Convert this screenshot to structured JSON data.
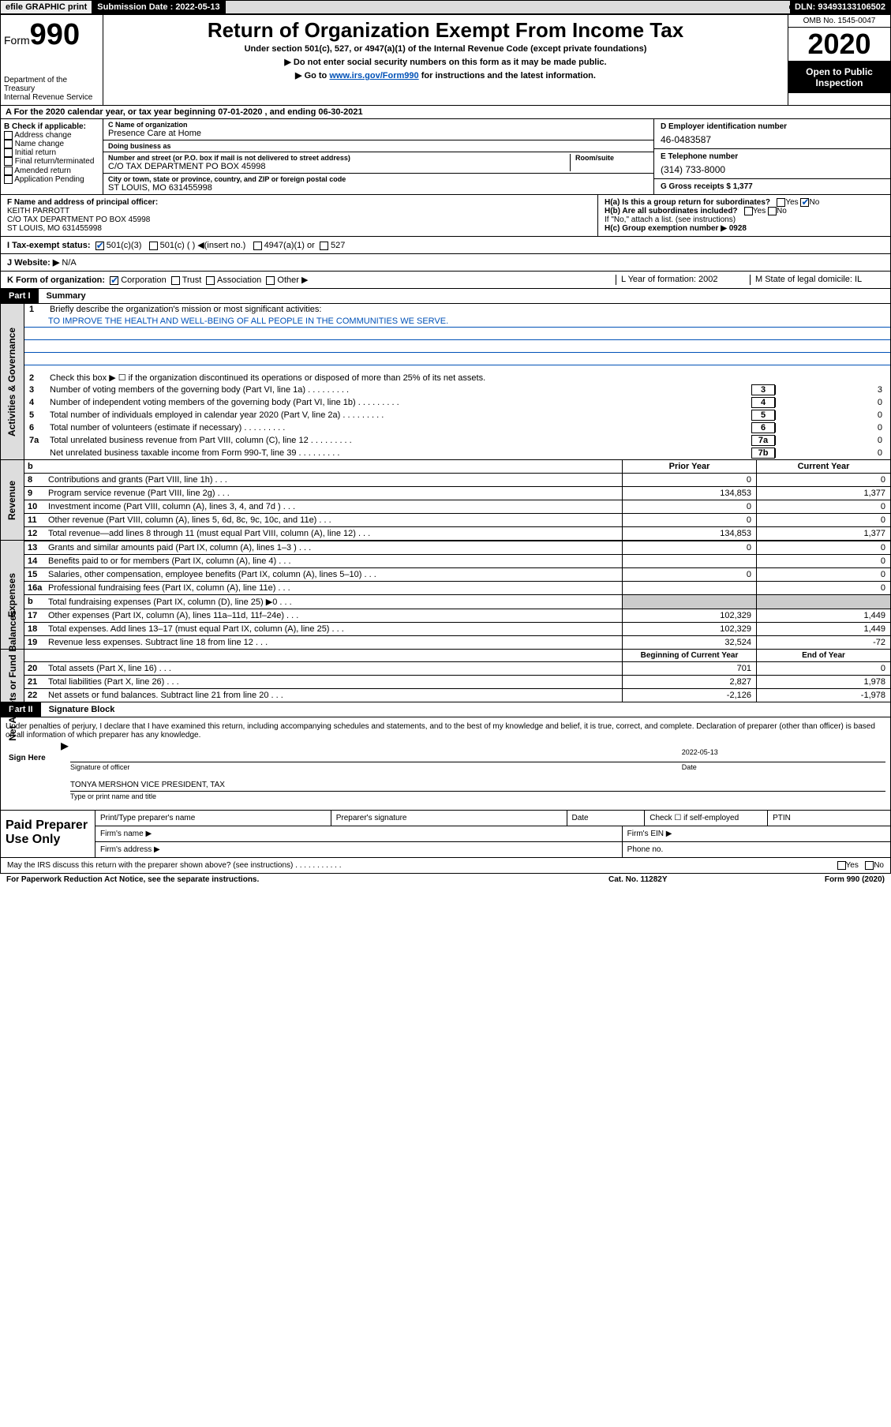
{
  "top_bar": {
    "efile_label": "efile GRAPHIC print",
    "submission_label": "Submission Date : 2022-05-13",
    "dln_label": "DLN: 93493133106502"
  },
  "header": {
    "form_label": "Form",
    "form_number": "990",
    "title": "Return of Organization Exempt From Income Tax",
    "subtitle1": "Under section 501(c), 527, or 4947(a)(1) of the Internal Revenue Code (except private foundations)",
    "subtitle2": "▶ Do not enter social security numbers on this form as it may be made public.",
    "subtitle3_pre": "▶ Go to ",
    "subtitle3_link": "www.irs.gov/Form990",
    "subtitle3_post": " for instructions and the latest information.",
    "omb": "OMB No. 1545-0047",
    "year": "2020",
    "public": "Open to Public Inspection",
    "dept1": "Department of the Treasury",
    "dept2": "Internal Revenue Service"
  },
  "row_a": "A For the 2020 calendar year, or tax year beginning 07-01-2020   , and ending 06-30-2021",
  "col_b": {
    "header": "B Check if applicable:",
    "items": [
      "Address change",
      "Name change",
      "Initial return",
      "Final return/terminated",
      "Amended return",
      "Application Pending"
    ]
  },
  "col_c": {
    "name_label": "C Name of organization",
    "name_value": "Presence Care at Home",
    "dba_label": "Doing business as",
    "dba_value": "",
    "street_label": "Number and street (or P.O. box if mail is not delivered to street address)",
    "room_label": "Room/suite",
    "street_value": "C/O TAX DEPARTMENT PO BOX 45998",
    "city_label": "City or town, state or province, country, and ZIP or foreign postal code",
    "city_value": "ST LOUIS, MO  631455998"
  },
  "col_d": {
    "ein_label": "D Employer identification number",
    "ein_value": "46-0483587",
    "phone_label": "E Telephone number",
    "phone_value": "(314) 733-8000",
    "gross_label": "G Gross receipts $ 1,377"
  },
  "col_f": {
    "label": "F  Name and address of principal officer:",
    "line1": "KEITH PARROTT",
    "line2": "C/O TAX DEPARTMENT PO BOX 45998",
    "line3": "ST LOUIS, MO  631455998"
  },
  "col_h": {
    "ha_label": "H(a)  Is this a group return for subordinates?",
    "hb_label": "H(b)  Are all subordinates included?",
    "hb_note": "If \"No,\" attach a list. (see instructions)",
    "hc_label": "H(c)  Group exemption number ▶   0928",
    "yes": "Yes",
    "no": "No"
  },
  "row_i": {
    "label": "I  Tax-exempt status:",
    "opt1": "501(c)(3)",
    "opt2": "501(c) (  ) ◀(insert no.)",
    "opt3": "4947(a)(1) or",
    "opt4": "527"
  },
  "row_j": {
    "label": "J  Website: ▶",
    "value": "N/A"
  },
  "row_k": {
    "label": "K Form of organization:",
    "o1": "Corporation",
    "o2": "Trust",
    "o3": "Association",
    "o4": "Other ▶",
    "l_label": "L Year of formation: 2002",
    "m_label": "M State of legal domicile: IL"
  },
  "part1": {
    "label": "Part I",
    "title": "Summary"
  },
  "summary": {
    "q1": "Briefly describe the organization's mission or most significant activities:",
    "mission": "TO IMPROVE THE HEALTH AND WELL-BEING OF ALL PEOPLE IN THE COMMUNITIES WE SERVE.",
    "q2": "Check this box ▶ ☐  if the organization discontinued its operations or disposed of more than 25% of its net assets.",
    "lines": [
      {
        "n": "3",
        "t": "Number of voting members of the governing body (Part VI, line 1a)",
        "box": "3",
        "v": "3"
      },
      {
        "n": "4",
        "t": "Number of independent voting members of the governing body (Part VI, line 1b)",
        "box": "4",
        "v": "0"
      },
      {
        "n": "5",
        "t": "Total number of individuals employed in calendar year 2020 (Part V, line 2a)",
        "box": "5",
        "v": "0"
      },
      {
        "n": "6",
        "t": "Total number of volunteers (estimate if necessary)",
        "box": "6",
        "v": "0"
      },
      {
        "n": "7a",
        "t": "Total unrelated business revenue from Part VIII, column (C), line 12",
        "box": "7a",
        "v": "0"
      },
      {
        "n": "",
        "t": "Net unrelated business taxable income from Form 990-T, line 39",
        "box": "7b",
        "v": "0"
      }
    ]
  },
  "rev_hdr": {
    "b": "b",
    "prior": "Prior Year",
    "current": "Current Year"
  },
  "revenue": [
    {
      "n": "8",
      "t": "Contributions and grants (Part VIII, line 1h)",
      "c1": "0",
      "c2": "0"
    },
    {
      "n": "9",
      "t": "Program service revenue (Part VIII, line 2g)",
      "c1": "134,853",
      "c2": "1,377"
    },
    {
      "n": "10",
      "t": "Investment income (Part VIII, column (A), lines 3, 4, and 7d )",
      "c1": "0",
      "c2": "0"
    },
    {
      "n": "11",
      "t": "Other revenue (Part VIII, column (A), lines 5, 6d, 8c, 9c, 10c, and 11e)",
      "c1": "0",
      "c2": "0"
    },
    {
      "n": "12",
      "t": "Total revenue—add lines 8 through 11 (must equal Part VIII, column (A), line 12)",
      "c1": "134,853",
      "c2": "1,377"
    }
  ],
  "expenses": [
    {
      "n": "13",
      "t": "Grants and similar amounts paid (Part IX, column (A), lines 1–3 )",
      "c1": "0",
      "c2": "0"
    },
    {
      "n": "14",
      "t": "Benefits paid to or for members (Part IX, column (A), line 4)",
      "c1": "",
      "c2": "0"
    },
    {
      "n": "15",
      "t": "Salaries, other compensation, employee benefits (Part IX, column (A), lines 5–10)",
      "c1": "0",
      "c2": "0"
    },
    {
      "n": "16a",
      "t": "Professional fundraising fees (Part IX, column (A), line 11e)",
      "c1": "",
      "c2": "0"
    },
    {
      "n": "b",
      "t": "Total fundraising expenses (Part IX, column (D), line 25) ▶0",
      "c1": "shade",
      "c2": "shade"
    },
    {
      "n": "17",
      "t": "Other expenses (Part IX, column (A), lines 11a–11d, 11f–24e)",
      "c1": "102,329",
      "c2": "1,449"
    },
    {
      "n": "18",
      "t": "Total expenses. Add lines 13–17 (must equal Part IX, column (A), line 25)",
      "c1": "102,329",
      "c2": "1,449"
    },
    {
      "n": "19",
      "t": "Revenue less expenses. Subtract line 18 from line 12",
      "c1": "32,524",
      "c2": "-72"
    }
  ],
  "net_hdr": {
    "prior": "Beginning of Current Year",
    "current": "End of Year"
  },
  "netassets": [
    {
      "n": "20",
      "t": "Total assets (Part X, line 16)",
      "c1": "701",
      "c2": "0"
    },
    {
      "n": "21",
      "t": "Total liabilities (Part X, line 26)",
      "c1": "2,827",
      "c2": "1,978"
    },
    {
      "n": "22",
      "t": "Net assets or fund balances. Subtract line 21 from line 20",
      "c1": "-2,126",
      "c2": "-1,978"
    }
  ],
  "part2": {
    "label": "Part II",
    "title": "Signature Block"
  },
  "sig": {
    "declaration": "Under penalties of perjury, I declare that I have examined this return, including accompanying schedules and statements, and to the best of my knowledge and belief, it is true, correct, and complete. Declaration of preparer (other than officer) is based on all information of which preparer has any knowledge.",
    "sign_here": "Sign Here",
    "sig_officer": "Signature of officer",
    "date": "Date",
    "date_val": "2022-05-13",
    "name": "TONYA MERSHON   VICE PRESIDENT, TAX",
    "type_name": "Type or print name and title"
  },
  "prep": {
    "label": "Paid Preparer Use Only",
    "h1": "Print/Type preparer's name",
    "h2": "Preparer's signature",
    "h3": "Date",
    "h4": "Check ☐ if self-employed",
    "h5": "PTIN",
    "firm_name": "Firm's name    ▶",
    "firm_ein": "Firm's EIN ▶",
    "firm_addr": "Firm's address ▶",
    "phone": "Phone no."
  },
  "discuss": {
    "q": "May the IRS discuss this return with the preparer shown above? (see instructions)",
    "yes": "Yes",
    "no": "No"
  },
  "footer": {
    "paperwork": "For Paperwork Reduction Act Notice, see the separate instructions.",
    "cat": "Cat. No. 11282Y",
    "form": "Form 990 (2020)"
  },
  "sidebars": {
    "s1": "Activities & Governance",
    "s2": "Revenue",
    "s3": "Expenses",
    "s4": "Net Assets or Fund Balances"
  }
}
